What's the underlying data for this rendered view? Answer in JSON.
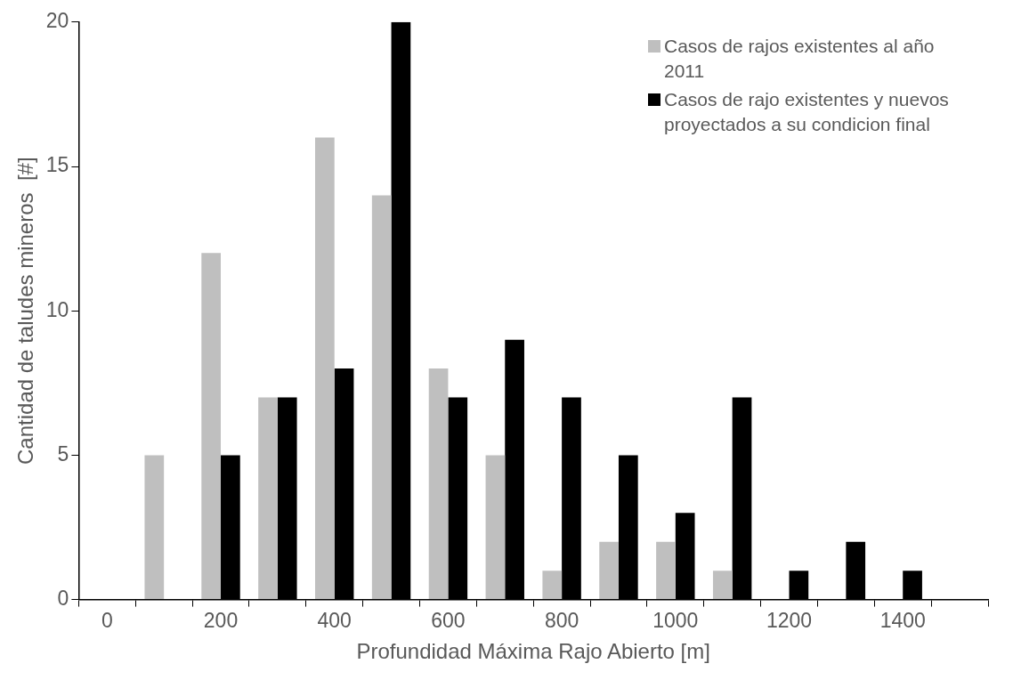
{
  "chart_data": {
    "type": "bar",
    "xlabel": "Profundidad Máxima Rajo Abierto [m]",
    "ylabel": "Cantidad de taludes mineros  [#]",
    "categories": [
      "0",
      null,
      "200",
      null,
      "400",
      null,
      "600",
      null,
      "800",
      null,
      "1000",
      null,
      "1200",
      null,
      "1400",
      null
    ],
    "series": [
      {
        "name": "Casos de rajos existentes al año 2011",
        "color": "#bfbfbf",
        "values": [
          0,
          5,
          12,
          7,
          16,
          14,
          8,
          5,
          1,
          2,
          2,
          1,
          0,
          0,
          0,
          0
        ]
      },
      {
        "name": "Casos de rajo existentes y nuevos proyectados a su condicion final",
        "color": "#000000",
        "values": [
          0,
          0,
          5,
          7,
          8,
          20,
          7,
          9,
          7,
          5,
          3,
          7,
          1,
          2,
          1,
          0
        ]
      }
    ],
    "ylim": [
      0,
      20
    ],
    "yticks": [
      0,
      5,
      10,
      15,
      20
    ],
    "grid": false,
    "legend": "top right"
  }
}
